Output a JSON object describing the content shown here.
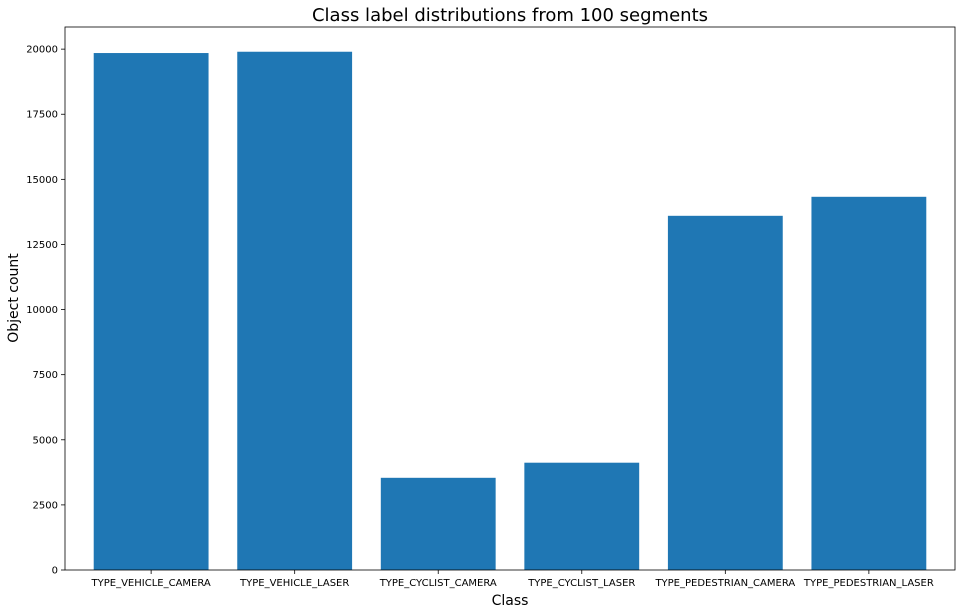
{
  "chart_data": {
    "type": "bar",
    "title": "Class label distributions from 100 segments",
    "xlabel": "Class",
    "ylabel": "Object count",
    "categories": [
      "TYPE_VEHICLE_CAMERA",
      "TYPE_VEHICLE_LASER",
      "TYPE_CYCLIST_CAMERA",
      "TYPE_CYCLIST_LASER",
      "TYPE_PEDESTRIAN_CAMERA",
      "TYPE_PEDESTRIAN_LASER"
    ],
    "values": [
      19850,
      19900,
      3540,
      4120,
      13600,
      14330
    ],
    "ylim": [
      0,
      20850
    ],
    "yticks": [
      0,
      2500,
      5000,
      7500,
      10000,
      12500,
      15000,
      17500,
      20000
    ],
    "ytick_labels": [
      "0",
      "2500",
      "5000",
      "7500",
      "10000",
      "12500",
      "15000",
      "17500",
      "20000"
    ],
    "bar_color": "#1f77b4",
    "grid": false,
    "legend": "none"
  }
}
